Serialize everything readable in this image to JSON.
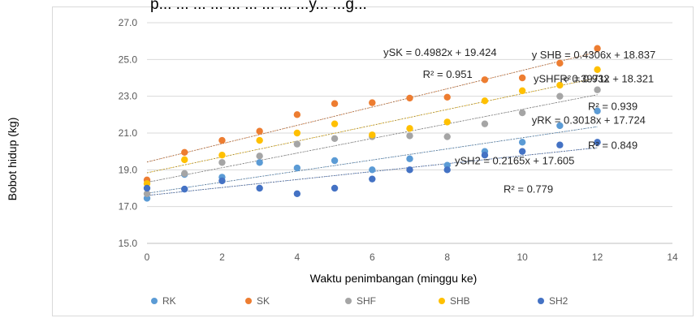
{
  "chart_data": {
    "type": "scatter",
    "top_text": "p... ... ... ... ... ... ... ... ...y... ...g...",
    "xlabel": "Waktu penimbangan (minggu ke)",
    "ylabel": "Bobot hidup (kg)",
    "xlim": [
      0,
      14
    ],
    "ylim": [
      15.0,
      27.0
    ],
    "xticks": [
      "0",
      "2",
      "4",
      "6",
      "8",
      "10",
      "12",
      "14"
    ],
    "yticks": [
      "15.0",
      "17.0",
      "19.0",
      "21.0",
      "23.0",
      "25.0",
      "27.0"
    ],
    "grid": true,
    "legend_position": "bottom",
    "series": [
      {
        "name": "RK",
        "color": "#5b9bd5",
        "x": [
          0,
          1,
          2,
          3,
          4,
          5,
          6,
          7,
          8,
          9,
          10,
          11,
          12
        ],
        "y": [
          17.45,
          18.75,
          18.6,
          19.4,
          19.1,
          19.5,
          19.0,
          19.6,
          19.25,
          20.0,
          20.5,
          21.4,
          22.2
        ],
        "trendline": {
          "slope": 0.3018,
          "intercept": 17.724
        }
      },
      {
        "name": "SK",
        "color": "#ed7d31",
        "x": [
          0,
          1,
          2,
          3,
          4,
          5,
          6,
          7,
          8,
          9,
          10,
          11,
          12
        ],
        "y": [
          18.45,
          19.95,
          20.6,
          21.1,
          22.0,
          22.6,
          22.65,
          22.9,
          22.95,
          23.9,
          24.0,
          24.8,
          25.6
        ],
        "trendline": {
          "slope": 0.4982,
          "intercept": 19.424
        }
      },
      {
        "name": "SHF",
        "color": "#a5a5a5",
        "x": [
          0,
          1,
          2,
          3,
          4,
          5,
          6,
          7,
          8,
          9,
          10,
          11,
          12
        ],
        "y": [
          17.7,
          18.8,
          19.4,
          19.75,
          20.4,
          20.7,
          20.8,
          20.85,
          20.8,
          21.5,
          22.1,
          23.0,
          23.35
        ],
        "trendline": {
          "slope": 0.3971,
          "intercept": 18.321
        }
      },
      {
        "name": "SHB",
        "color": "#ffc000",
        "x": [
          0,
          1,
          2,
          3,
          4,
          5,
          6,
          7,
          8,
          9,
          10,
          11,
          12
        ],
        "y": [
          18.25,
          19.55,
          19.8,
          20.6,
          21.0,
          21.5,
          20.9,
          21.25,
          21.6,
          22.75,
          23.3,
          23.6,
          24.45
        ],
        "trendline": {
          "slope": 0.4306,
          "intercept": 18.837
        }
      },
      {
        "name": "SH2",
        "color": "#4472c4",
        "x": [
          0,
          1,
          2,
          3,
          4,
          5,
          6,
          7,
          8,
          9,
          10,
          11,
          12
        ],
        "y": [
          18.0,
          17.95,
          18.4,
          18.0,
          17.7,
          18.0,
          18.5,
          19.0,
          19.0,
          19.8,
          20.0,
          20.35,
          20.5
        ],
        "trendline": {
          "slope": 0.2165,
          "intercept": 17.605
        }
      }
    ],
    "annotations": [
      {
        "text": "ySK = 0.4982x + 19.424",
        "x": 6.3,
        "y": 25.2
      },
      {
        "text": "R² = 0.951",
        "x": 7.35,
        "y": 24.0
      },
      {
        "text": "y SHB = 0.4306x + 18.837",
        "x": 10.25,
        "y": 25.05
      },
      {
        "text": "ySHF = 0.3971x + 18.321",
        "x": 10.3,
        "y": 23.75
      },
      {
        "text": "R² = 0.932",
        "x": 11.0,
        "y": 23.75
      },
      {
        "text": "R² = 0.939",
        "x": 11.75,
        "y": 22.25
      },
      {
        "text": "yRK = 0.3018x + 17.724",
        "x": 10.25,
        "y": 21.5
      },
      {
        "text": "R² = 0.849",
        "x": 11.75,
        "y": 20.15
      },
      {
        "text": "ySH2 = 0.2165x + 17.605",
        "x": 8.2,
        "y": 19.3
      },
      {
        "text": "R² = 0.779",
        "x": 9.5,
        "y": 17.75
      }
    ]
  }
}
